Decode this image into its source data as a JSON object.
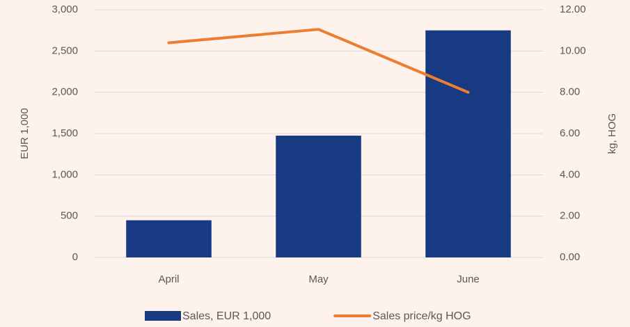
{
  "chart_data": {
    "type": "bar",
    "categories": [
      "April",
      "May",
      "June"
    ],
    "series": [
      {
        "name": "Sales, EUR 1,000",
        "type": "bar",
        "color": "#173a82",
        "values": [
          450,
          1475,
          2750
        ]
      },
      {
        "name": "Sales price/kg HOG",
        "type": "line",
        "axis": "y2",
        "color": "#ed7d31",
        "values": [
          10.4,
          11.05,
          8.0
        ]
      }
    ],
    "ylabel": "EUR 1,000",
    "y2label": "kg, HOG",
    "ylim": [
      0,
      3000
    ],
    "yticks": [
      0,
      500,
      {
        "value": 1000,
        "label": "1,000"
      },
      {
        "value": 1500,
        "label": "1,500"
      },
      {
        "value": 2000,
        "label": "2,000"
      },
      {
        "value": 2500,
        "label": "2,500"
      },
      {
        "value": 3000,
        "label": "3,000"
      }
    ],
    "y2lim": [
      0,
      12
    ],
    "y2ticks": [
      {
        "value": 0,
        "label": "0.00"
      },
      {
        "value": 2,
        "label": "2.00"
      },
      {
        "value": 4,
        "label": "4.00"
      },
      {
        "value": 6,
        "label": "6.00"
      },
      {
        "value": 8,
        "label": "8.00"
      },
      {
        "value": 10,
        "label": "10.00"
      },
      {
        "value": 12,
        "label": "12.00"
      }
    ],
    "grid": true,
    "legend": "bottom"
  }
}
